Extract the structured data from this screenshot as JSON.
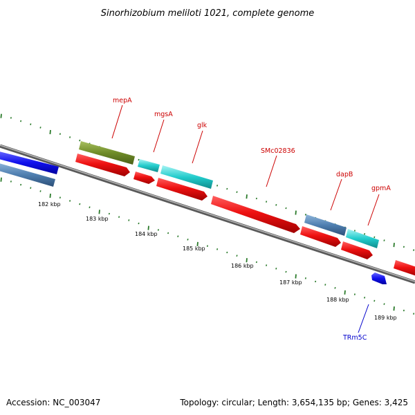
{
  "title": "Sinorhizobium meliloti 1021, complete genome",
  "footer": {
    "accession": "Accession: NC_003047",
    "summary": "Topology: circular; Length: 3,654,135 bp; Genes: 3,425"
  },
  "scale_labels": [
    "182 kbp",
    "183 kbp",
    "184 kbp",
    "185 kbp",
    "186 kbp",
    "187 kbp",
    "188 kbp",
    "189 kbp"
  ],
  "gene_labels": [
    {
      "name": "mepA",
      "color": "#cc0000"
    },
    {
      "name": "mgsA",
      "color": "#cc0000"
    },
    {
      "name": "glk",
      "color": "#cc0000"
    },
    {
      "name": "SMc02836",
      "color": "#cc0000"
    },
    {
      "name": "dapB",
      "color": "#cc0000"
    },
    {
      "name": "gpmA",
      "color": "#cc0000"
    },
    {
      "name": "TRm5C",
      "color": "#0000cc"
    }
  ],
  "colors": {
    "backbone": "#8a8a8a",
    "cds_red": "#ee1111",
    "cds_steel": "#4f7fb0",
    "cds_cyan": "#22cccc",
    "cds_olive": "#6f8c28",
    "cds_blue": "#1111ee",
    "tick": "#2a7a2a"
  }
}
